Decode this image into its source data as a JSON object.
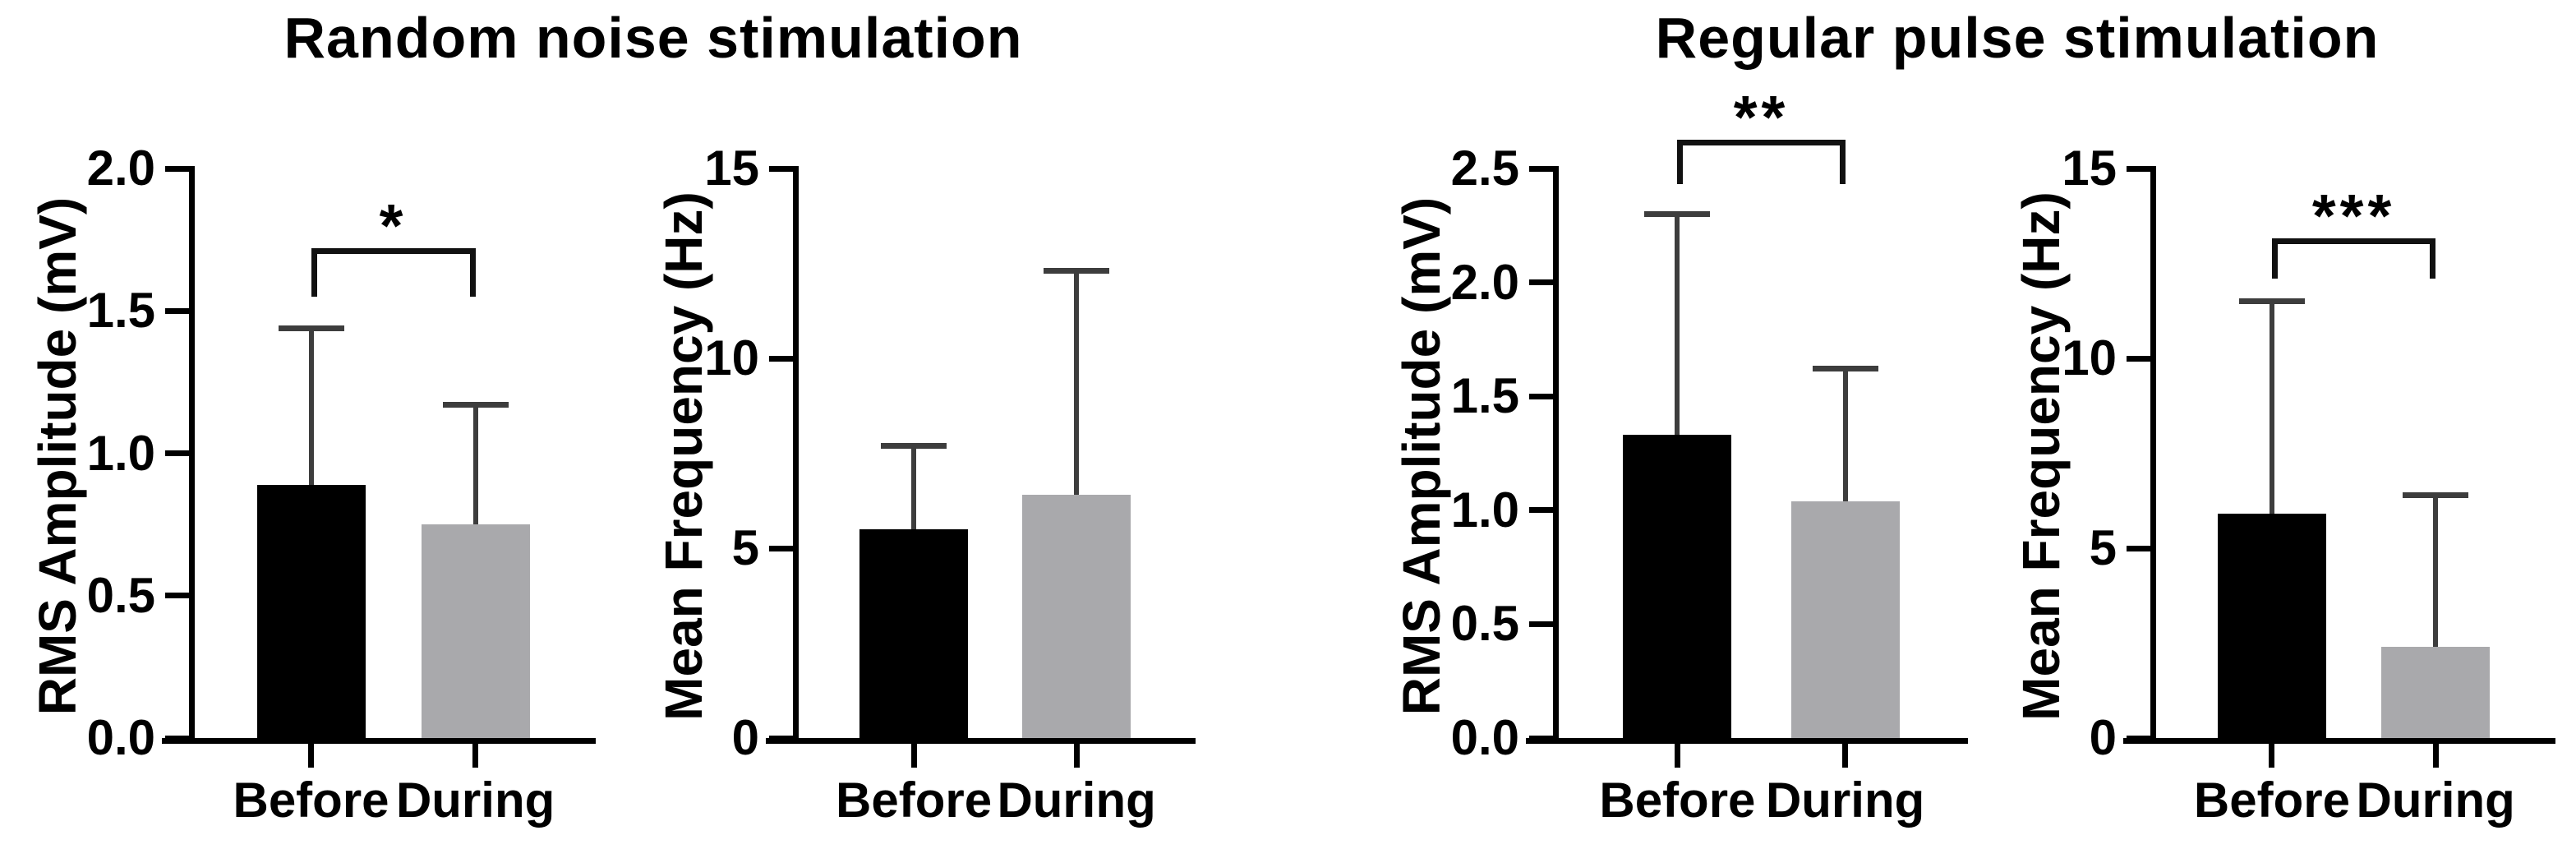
{
  "figure": {
    "axis_color": "#000000",
    "error_bar_color": "#3d3d3d",
    "background_color": "#ffffff"
  },
  "groups": [
    {
      "title": "Random noise stimulation"
    },
    {
      "title": "Regular pulse stimulation"
    }
  ],
  "chart_data": [
    {
      "type": "bar",
      "group": "Random noise stimulation",
      "ylabel": "RMS Amplitude (mV)",
      "xlabel": "",
      "categories": [
        "Before",
        "During"
      ],
      "values": [
        0.89,
        0.75
      ],
      "errors_upper": [
        1.44,
        1.17
      ],
      "ylim": [
        0,
        2.0
      ],
      "yticks": [
        0,
        0.5,
        1.0,
        1.5,
        2.0
      ],
      "ytick_labels": [
        "0.0",
        "0.5",
        "1.0",
        "1.5",
        "2.0"
      ],
      "bar_colors": [
        "#000000",
        "#a9a9ac"
      ],
      "grid": false,
      "significance": {
        "label": "*",
        "y": 1.7,
        "drop": 0.15
      }
    },
    {
      "type": "bar",
      "group": "Random noise stimulation",
      "ylabel": "Mean Frequency (Hz)",
      "xlabel": "",
      "categories": [
        "Before",
        "During"
      ],
      "values": [
        5.5,
        6.4
      ],
      "errors_upper": [
        7.7,
        12.3
      ],
      "ylim": [
        0,
        15
      ],
      "yticks": [
        0,
        5,
        10,
        15
      ],
      "ytick_labels": [
        "0",
        "5",
        "10",
        "15"
      ],
      "bar_colors": [
        "#000000",
        "#a9a9ac"
      ],
      "grid": false,
      "significance": null
    },
    {
      "type": "bar",
      "group": "Regular pulse stimulation",
      "ylabel": "RMS Amplitude (mV)",
      "xlabel": "",
      "categories": [
        "Before",
        "During"
      ],
      "values": [
        1.33,
        1.04
      ],
      "errors_upper": [
        2.3,
        1.62
      ],
      "ylim": [
        0,
        2.5
      ],
      "yticks": [
        0,
        0.5,
        1.0,
        1.5,
        2.0,
        2.5
      ],
      "ytick_labels": [
        "0.0",
        "0.5",
        "1.0",
        "1.5",
        "2.0",
        "2.5"
      ],
      "bar_colors": [
        "#000000",
        "#a9a9ac"
      ],
      "grid": false,
      "significance": {
        "label": "**",
        "y": 2.6,
        "drop": 0.17
      }
    },
    {
      "type": "bar",
      "group": "Regular pulse stimulation",
      "ylabel": "Mean Frequency (Hz)",
      "xlabel": "",
      "categories": [
        "Before",
        "During"
      ],
      "values": [
        5.9,
        2.4
      ],
      "errors_upper": [
        11.5,
        6.4
      ],
      "ylim": [
        0,
        15
      ],
      "yticks": [
        0,
        5,
        10,
        15
      ],
      "ytick_labels": [
        "0",
        "5",
        "10",
        "15"
      ],
      "bar_colors": [
        "#000000",
        "#a9a9ac"
      ],
      "grid": false,
      "significance": {
        "label": "***",
        "y": 13.0,
        "drop": 0.9
      }
    }
  ]
}
